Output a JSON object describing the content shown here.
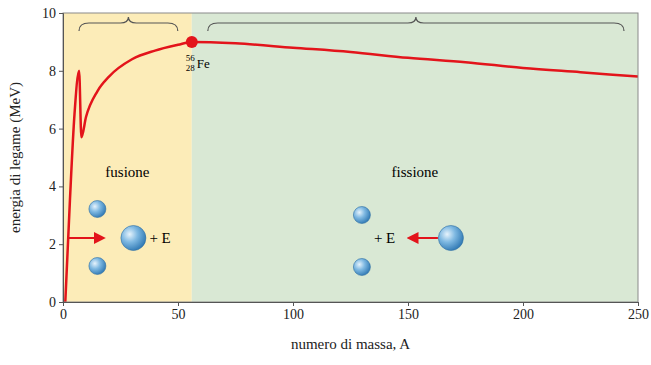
{
  "chart_data": {
    "type": "line",
    "x_label": "numero di massa, A",
    "y_label": "energia di legame (MeV)",
    "x": [
      1,
      3,
      5,
      7,
      8,
      10,
      15,
      20,
      30,
      40,
      50,
      56,
      75,
      100,
      125,
      150,
      175,
      200,
      225,
      250
    ],
    "series": [
      {
        "color": "#e3141b",
        "values": [
          0,
          3.5,
          6.5,
          8.0,
          5.7,
          6.4,
          7.3,
          7.8,
          8.4,
          8.7,
          8.9,
          9.0,
          8.95,
          8.8,
          8.65,
          8.45,
          8.3,
          8.1,
          7.95,
          7.8
        ]
      }
    ],
    "xlim": [
      0,
      250
    ],
    "xticks": [
      0,
      50,
      100,
      150,
      200,
      250
    ],
    "ylim": [
      0,
      10
    ],
    "yticks": [
      0,
      2,
      4,
      6,
      8,
      10
    ],
    "grid": false,
    "regions": [
      {
        "label": "fusione",
        "from": 0,
        "to": 56,
        "color": "#fcecb8",
        "energy_label": "+ E"
      },
      {
        "label": "fissione",
        "from": 56,
        "to": 250,
        "color": "#d9e8d4",
        "energy_label": "+ E"
      }
    ],
    "highlight": {
      "x": 56,
      "y": 9.0,
      "label": "Fe",
      "mass_number": 56,
      "atomic_number": 28,
      "color": "#e3141b"
    }
  }
}
